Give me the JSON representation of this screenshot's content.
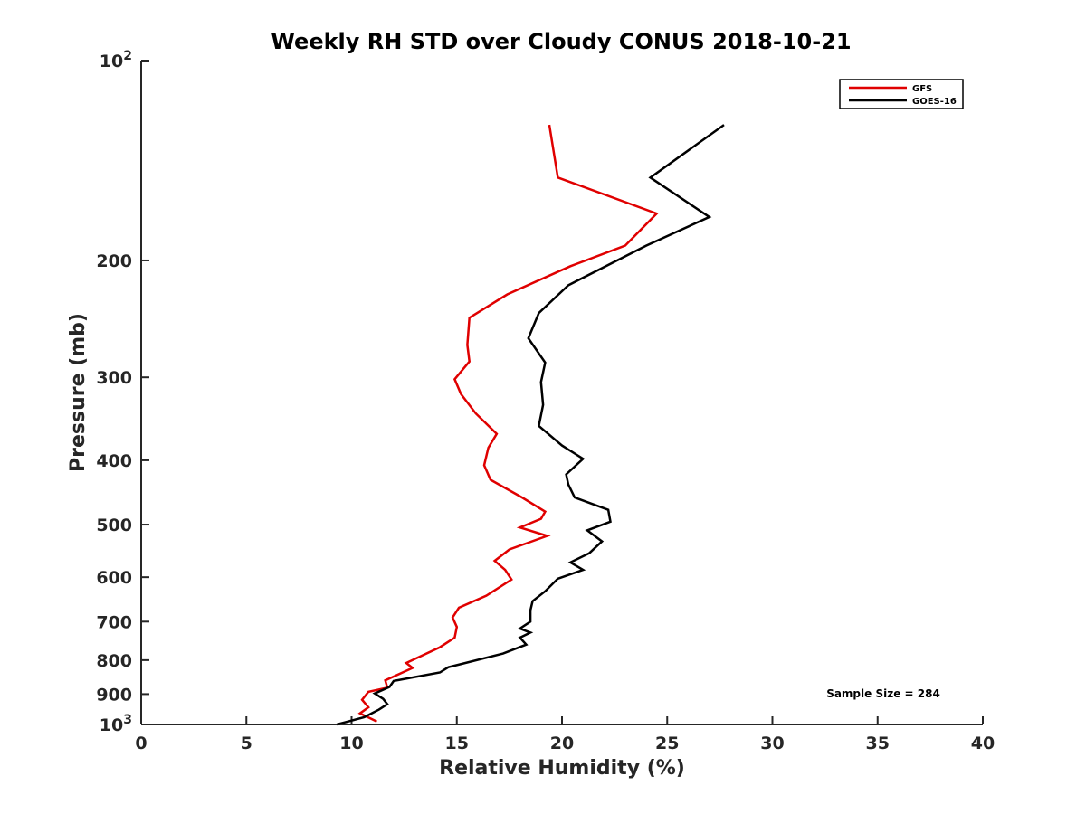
{
  "chart_data": {
    "type": "line",
    "title": "Weekly RH STD over Cloudy CONUS 2018-10-21",
    "xlabel": "Relative Humidity (%)",
    "ylabel": "Pressure (mb)",
    "xlim": [
      0,
      40
    ],
    "ylim": [
      100,
      1000
    ],
    "y_scale": "log",
    "y_reversed": true,
    "x_ticks": [
      "0",
      "5",
      "10",
      "15",
      "20",
      "25",
      "30",
      "35",
      "40"
    ],
    "y_ticks": [
      {
        "value": 100,
        "base": "10",
        "exp": "2"
      },
      {
        "value": 200,
        "label": "200"
      },
      {
        "value": 300,
        "label": "300"
      },
      {
        "value": 400,
        "label": "400"
      },
      {
        "value": 500,
        "label": "500"
      },
      {
        "value": 600,
        "label": "600"
      },
      {
        "value": 700,
        "label": "700"
      },
      {
        "value": 800,
        "label": "800"
      },
      {
        "value": 900,
        "label": "900"
      },
      {
        "value": 1000,
        "base": "10",
        "exp": "3"
      }
    ],
    "legend_position": "top-right",
    "grid": false,
    "annotation": "Sample Size = 284",
    "series": [
      {
        "name": "GFS",
        "color": "#e00000",
        "points": [
          [
            19.4,
            125
          ],
          [
            19.8,
            150
          ],
          [
            24.5,
            170
          ],
          [
            23.0,
            190
          ],
          [
            20.4,
            204
          ],
          [
            17.4,
            225
          ],
          [
            15.6,
            244
          ],
          [
            15.5,
            268
          ],
          [
            15.6,
            284
          ],
          [
            14.9,
            302
          ],
          [
            15.2,
            318
          ],
          [
            15.9,
            340
          ],
          [
            16.9,
            365
          ],
          [
            16.5,
            383
          ],
          [
            16.3,
            407
          ],
          [
            16.6,
            428
          ],
          [
            18.1,
            455
          ],
          [
            19.2,
            478
          ],
          [
            19.0,
            490
          ],
          [
            18.0,
            505
          ],
          [
            19.3,
            520
          ],
          [
            17.5,
            545
          ],
          [
            16.8,
            567
          ],
          [
            17.3,
            585
          ],
          [
            17.6,
            605
          ],
          [
            16.4,
            640
          ],
          [
            15.1,
            667
          ],
          [
            14.8,
            690
          ],
          [
            15.0,
            713
          ],
          [
            14.9,
            740
          ],
          [
            14.2,
            765
          ],
          [
            12.6,
            808
          ],
          [
            12.9,
            822
          ],
          [
            11.6,
            858
          ],
          [
            11.7,
            880
          ],
          [
            10.8,
            893
          ],
          [
            10.5,
            918
          ],
          [
            10.8,
            942
          ],
          [
            10.4,
            962
          ],
          [
            11.2,
            990
          ]
        ]
      },
      {
        "name": "GOES-16",
        "color": "#000000",
        "points": [
          [
            27.7,
            125
          ],
          [
            24.2,
            150
          ],
          [
            27.0,
            172
          ],
          [
            24.0,
            190
          ],
          [
            20.3,
            218
          ],
          [
            18.9,
            240
          ],
          [
            18.4,
            262
          ],
          [
            19.2,
            285
          ],
          [
            19.0,
            305
          ],
          [
            19.1,
            330
          ],
          [
            18.9,
            355
          ],
          [
            20.0,
            380
          ],
          [
            21.0,
            398
          ],
          [
            20.2,
            420
          ],
          [
            20.3,
            435
          ],
          [
            20.6,
            455
          ],
          [
            22.2,
            475
          ],
          [
            22.3,
            495
          ],
          [
            21.2,
            510
          ],
          [
            21.9,
            530
          ],
          [
            21.3,
            552
          ],
          [
            20.4,
            570
          ],
          [
            21.0,
            585
          ],
          [
            19.8,
            603
          ],
          [
            19.2,
            630
          ],
          [
            18.6,
            652
          ],
          [
            18.5,
            673
          ],
          [
            18.5,
            700
          ],
          [
            18.0,
            717
          ],
          [
            18.5,
            727
          ],
          [
            18.0,
            740
          ],
          [
            18.3,
            758
          ],
          [
            17.2,
            782
          ],
          [
            14.6,
            820
          ],
          [
            14.2,
            835
          ],
          [
            12.0,
            860
          ],
          [
            11.8,
            878
          ],
          [
            11.1,
            898
          ],
          [
            11.5,
            915
          ],
          [
            11.7,
            932
          ],
          [
            11.3,
            950
          ],
          [
            10.6,
            975
          ],
          [
            9.3,
            1000
          ]
        ]
      }
    ]
  }
}
